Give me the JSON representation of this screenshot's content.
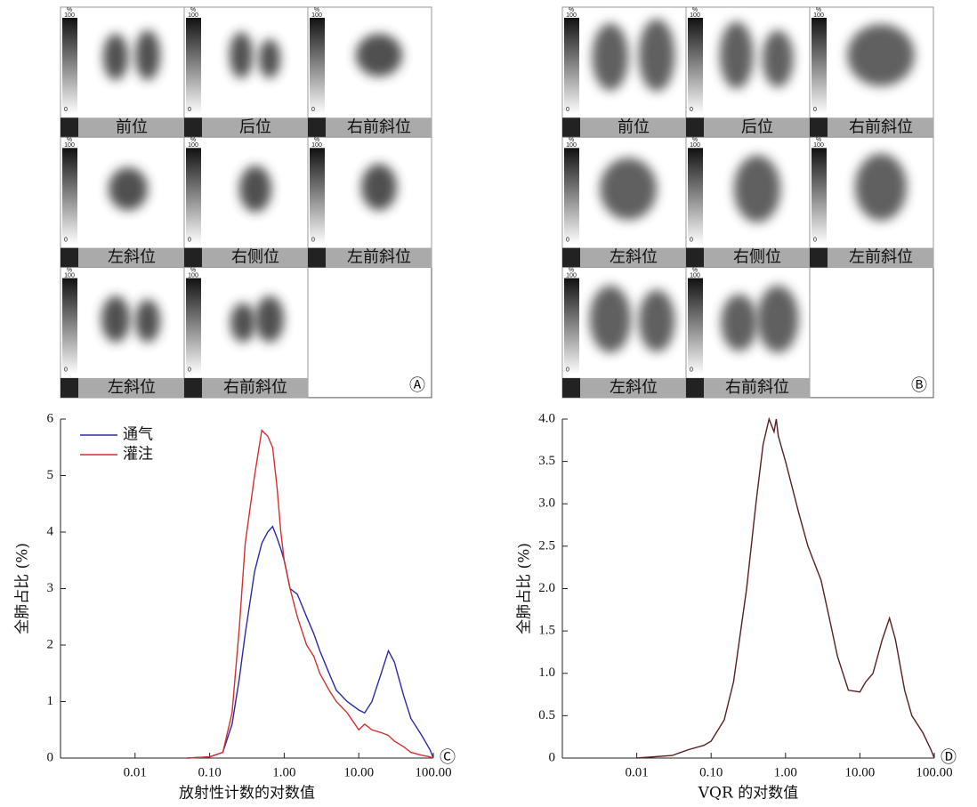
{
  "panels": [
    {
      "label": "Ⓐ",
      "views": [
        "前位",
        "后位",
        "右前斜位",
        "左斜位",
        "右侧位",
        "左前斜位",
        "左斜位",
        "右前斜位"
      ]
    },
    {
      "label": "Ⓑ",
      "views": [
        "前位",
        "后位",
        "右前斜位",
        "左斜位",
        "右侧位",
        "左前斜位",
        "左斜位",
        "右前斜位"
      ]
    }
  ],
  "scale": {
    "unit": "%",
    "max": 100,
    "min": 0
  },
  "chart_data": [
    {
      "type": "line",
      "panel_label": "Ⓒ",
      "xlabel": "放射性计数的对数值",
      "ylabel": "全肺占比 (%)",
      "log_x": true,
      "x": [
        0.05,
        0.1,
        0.15,
        0.2,
        0.25,
        0.3,
        0.4,
        0.5,
        0.6,
        0.7,
        0.8,
        0.9,
        1,
        1.2,
        1.5,
        2,
        2.5,
        3,
        4,
        5,
        7,
        10,
        12,
        15,
        20,
        25,
        30,
        40,
        50,
        70,
        90,
        100
      ],
      "series": [
        {
          "name": "通气",
          "color": "#2a2aa8",
          "values": [
            0,
            0.02,
            0.1,
            0.6,
            1.4,
            2.2,
            3.3,
            3.8,
            4.0,
            4.1,
            3.9,
            3.7,
            3.5,
            3.0,
            2.9,
            2.5,
            2.2,
            1.9,
            1.5,
            1.2,
            1.0,
            0.85,
            0.8,
            1.0,
            1.5,
            1.9,
            1.7,
            1.1,
            0.7,
            0.4,
            0.15,
            0
          ]
        },
        {
          "name": "灌注",
          "color": "#d43030",
          "values": [
            0,
            0.02,
            0.1,
            0.8,
            2.3,
            3.8,
            5.0,
            5.8,
            5.7,
            5.5,
            4.8,
            4.0,
            3.5,
            3.0,
            2.5,
            2.0,
            1.8,
            1.5,
            1.2,
            1.0,
            0.8,
            0.5,
            0.6,
            0.5,
            0.45,
            0.4,
            0.3,
            0.2,
            0.1,
            0.05,
            0.02,
            0
          ]
        }
      ],
      "xlim": [
        0.001,
        100
      ],
      "xticks": [
        0.01,
        {
          "value": 0.1,
          "label": "0.10"
        },
        {
          "value": 1,
          "label": "1.00"
        },
        {
          "value": 10,
          "label": "10.00"
        },
        {
          "value": 100,
          "label": "100.00"
        }
      ],
      "ylim": [
        0,
        6
      ],
      "yticks": [
        0,
        1,
        2,
        3,
        4,
        5,
        6
      ]
    },
    {
      "type": "line",
      "panel_label": "Ⓓ",
      "xlabel": "VQR 的对数值",
      "ylabel": "全肺占比 (%)",
      "log_x": true,
      "x": [
        0.01,
        0.03,
        0.05,
        0.08,
        0.1,
        0.15,
        0.2,
        0.3,
        0.4,
        0.5,
        0.6,
        0.7,
        0.75,
        0.8,
        1,
        1.5,
        2,
        3,
        4,
        5,
        7,
        10,
        12,
        15,
        20,
        25,
        30,
        40,
        50,
        70,
        90,
        100
      ],
      "series": [
        {
          "color": "#5a1f1f",
          "values": [
            0,
            0.03,
            0.1,
            0.15,
            0.2,
            0.45,
            0.9,
            2.0,
            3.0,
            3.7,
            4.0,
            3.85,
            4.0,
            3.8,
            3.5,
            2.9,
            2.5,
            2.1,
            1.6,
            1.2,
            0.8,
            0.78,
            0.9,
            1.0,
            1.4,
            1.65,
            1.4,
            0.8,
            0.5,
            0.3,
            0.1,
            0
          ]
        }
      ],
      "xlim": [
        0.001,
        100
      ],
      "xticks": [
        0.01,
        {
          "value": 0.1,
          "label": "0.10"
        },
        {
          "value": 1,
          "label": "1.00"
        },
        {
          "value": 10,
          "label": "10.00"
        },
        {
          "value": 100,
          "label": "100.00"
        }
      ],
      "ylim": [
        0,
        4
      ],
      "yticks": [
        0,
        0.5,
        {
          "value": 1,
          "label": "1.0"
        },
        1.5,
        {
          "value": 2,
          "label": "2.0"
        },
        2.5,
        {
          "value": 3,
          "label": "3.0"
        },
        3.5,
        {
          "value": 4,
          "label": "4.0"
        }
      ]
    }
  ]
}
